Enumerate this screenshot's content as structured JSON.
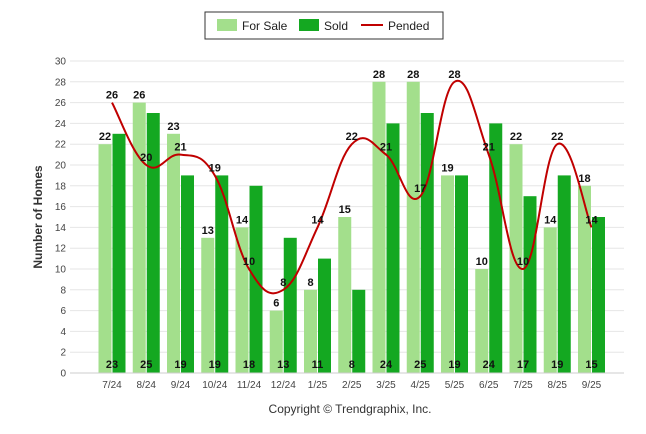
{
  "chart_data": {
    "type": "bar",
    "title": "",
    "xlabel": "",
    "ylabel": "Number of Homes",
    "ylim": [
      0,
      30
    ],
    "yticks": [
      0,
      2,
      4,
      6,
      8,
      10,
      12,
      14,
      16,
      18,
      20,
      22,
      24,
      26,
      28,
      30
    ],
    "grid": true,
    "legend_position": "top-center",
    "categories": [
      "7/24",
      "8/24",
      "9/24",
      "10/24",
      "11/24",
      "12/24",
      "1/25",
      "2/25",
      "3/25",
      "4/25",
      "5/25",
      "6/25",
      "7/25",
      "8/25",
      "9/25"
    ],
    "series": [
      {
        "name": "For Sale",
        "type": "bar",
        "color": "#a3df8c",
        "values": [
          22,
          26,
          23,
          13,
          14,
          6,
          8,
          15,
          28,
          28,
          19,
          10,
          22,
          14,
          18
        ]
      },
      {
        "name": "Sold",
        "type": "bar",
        "color": "#14a821",
        "values": [
          23,
          25,
          19,
          19,
          18,
          13,
          11,
          8,
          24,
          25,
          19,
          24,
          17,
          19,
          15
        ]
      },
      {
        "name": "Pended",
        "type": "line",
        "color": "#c00000",
        "values": [
          26,
          20,
          21,
          19,
          10,
          8,
          14,
          22,
          21,
          17,
          28,
          21,
          10,
          22,
          14
        ]
      }
    ]
  },
  "footer": {
    "copyright": "Copyright © Trendgraphix, Inc."
  }
}
